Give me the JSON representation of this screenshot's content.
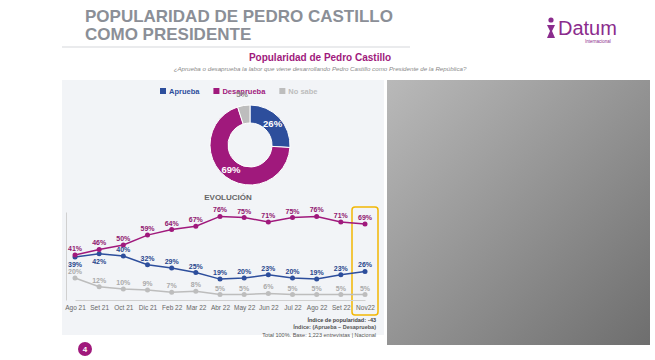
{
  "page": {
    "title_lines": [
      "POPULARIDAD DE PEDRO CASTILLO",
      "COMO PRESIDENTE"
    ],
    "logo": "Datum",
    "logo_tagline": "Internacional",
    "page_number": 4
  },
  "chart_data": [
    {
      "type": "donut",
      "title": "Popularidad de Pedro Castillo",
      "subtitle": "¿Aprueba o desaprueba la labor que viene desarrollando Pedro Castillo como Presidente de la República?",
      "categories": [
        "Aprueba",
        "Desaprueba",
        "No sabe"
      ],
      "values": [
        26,
        69,
        5
      ],
      "value_labels": [
        "26%",
        "69%",
        "5%"
      ],
      "colors": [
        "#2d4e9c",
        "#a0197c",
        "#bdbdbd"
      ],
      "legend": "top",
      "data_labels": true
    },
    {
      "type": "line",
      "title": "EVOLUCIÓN",
      "categories": [
        "Ago 21",
        "Set 21",
        "Oct 21",
        "Dic 21",
        "Feb 22",
        "Mar 22",
        "Abr 22",
        "May 22",
        "Jun 22",
        "Jul 22",
        "Ago 22",
        "Set 22",
        "Nov22"
      ],
      "ylim": [
        0,
        80
      ],
      "tick_labels": "x",
      "data_labels": true,
      "marker": "circle",
      "series": [
        {
          "name": "Aprueba",
          "color": "#2d4e9c",
          "values": [
            39,
            42,
            40,
            32,
            29,
            25,
            19,
            20,
            23,
            20,
            19,
            23,
            26
          ],
          "value_labels": [
            "39%",
            "42%",
            "40%",
            "32%",
            "29%",
            "25%",
            "19%",
            "20%",
            "23%",
            "20%",
            "19%",
            "23%",
            "26%"
          ]
        },
        {
          "name": "Desaprueba",
          "color": "#a0197c",
          "values": [
            41,
            46,
            50,
            59,
            64,
            67,
            76,
            75,
            71,
            75,
            76,
            71,
            69
          ],
          "value_labels": [
            "41%",
            "46%",
            "50%",
            "59%",
            "64%",
            "67%",
            "76%",
            "75%",
            "71%",
            "75%",
            "76%",
            "71%",
            "69%"
          ]
        },
        {
          "name": "No sabe",
          "color": "#bdbdbd",
          "values": [
            20,
            12,
            10,
            9,
            7,
            8,
            5,
            5,
            6,
            5,
            5,
            5,
            5
          ],
          "value_labels": [
            "20%",
            "12%",
            "10%",
            "9%",
            "7%",
            "8%",
            "5%",
            "5%",
            "6%",
            "5%",
            "5%",
            "5%",
            "5%"
          ]
        }
      ],
      "popularity_index": {
        "label": "Índice de popularidad:",
        "value": -43
      },
      "notes": [
        "Índice: (Aprueba – Desaprueba)",
        "Total 100%. Base: 1,223 entrevistas | Nacional"
      ]
    }
  ]
}
